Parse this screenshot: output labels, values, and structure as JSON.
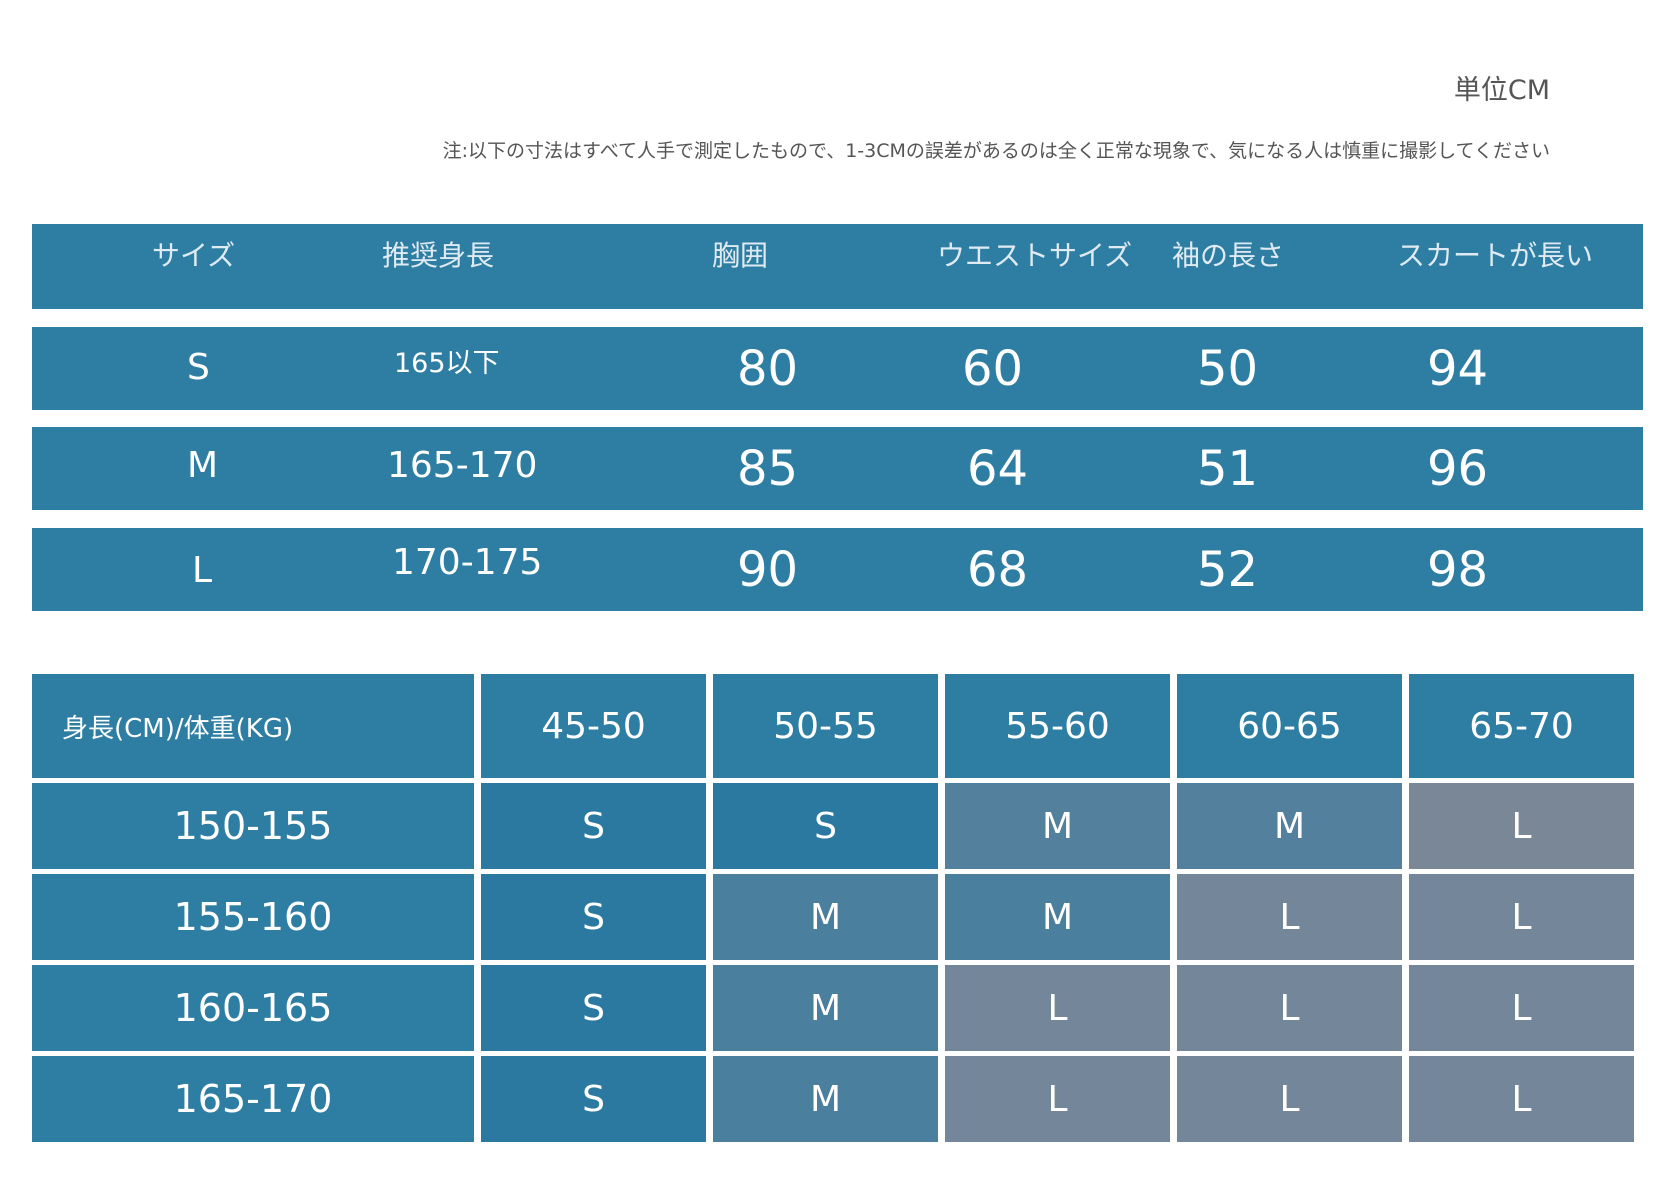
{
  "unit_label": "単位CM",
  "note": "注:以下の寸法はすべて人手で測定したもので、1-3CMの誤差があるのは全く正常な現象で、気になる人は慎重に撮影してください",
  "size_table": {
    "headers": [
      "サイズ",
      "推奨身長",
      "胸囲",
      "ウエストサイズ",
      "袖の長さ",
      "スカートが長い"
    ],
    "rows": [
      [
        "S",
        "165以下",
        "80",
        "60",
        "50",
        "94"
      ],
      [
        "M",
        "165-170",
        "85",
        "64",
        "51",
        "96"
      ],
      [
        "L",
        "170-175",
        "90",
        "68",
        "52",
        "98"
      ]
    ]
  },
  "recommend_table": {
    "corner": "身長(CM)/体重(KG)",
    "weights": [
      "45-50",
      "50-55",
      "55-60",
      "60-65",
      "65-70"
    ],
    "rows": [
      {
        "height": "150-155",
        "sizes": [
          "S",
          "S",
          "M",
          "M",
          "L"
        ]
      },
      {
        "height": "155-160",
        "sizes": [
          "S",
          "M",
          "M",
          "L",
          "L"
        ]
      },
      {
        "height": "160-165",
        "sizes": [
          "S",
          "M",
          "L",
          "L",
          "L"
        ]
      },
      {
        "height": "165-170",
        "sizes": [
          "S",
          "M",
          "L",
          "L",
          "L"
        ]
      }
    ]
  },
  "colors": {
    "blue": "#2e7ea3",
    "slate": "#4a7f9e",
    "gray": "#74879a"
  }
}
